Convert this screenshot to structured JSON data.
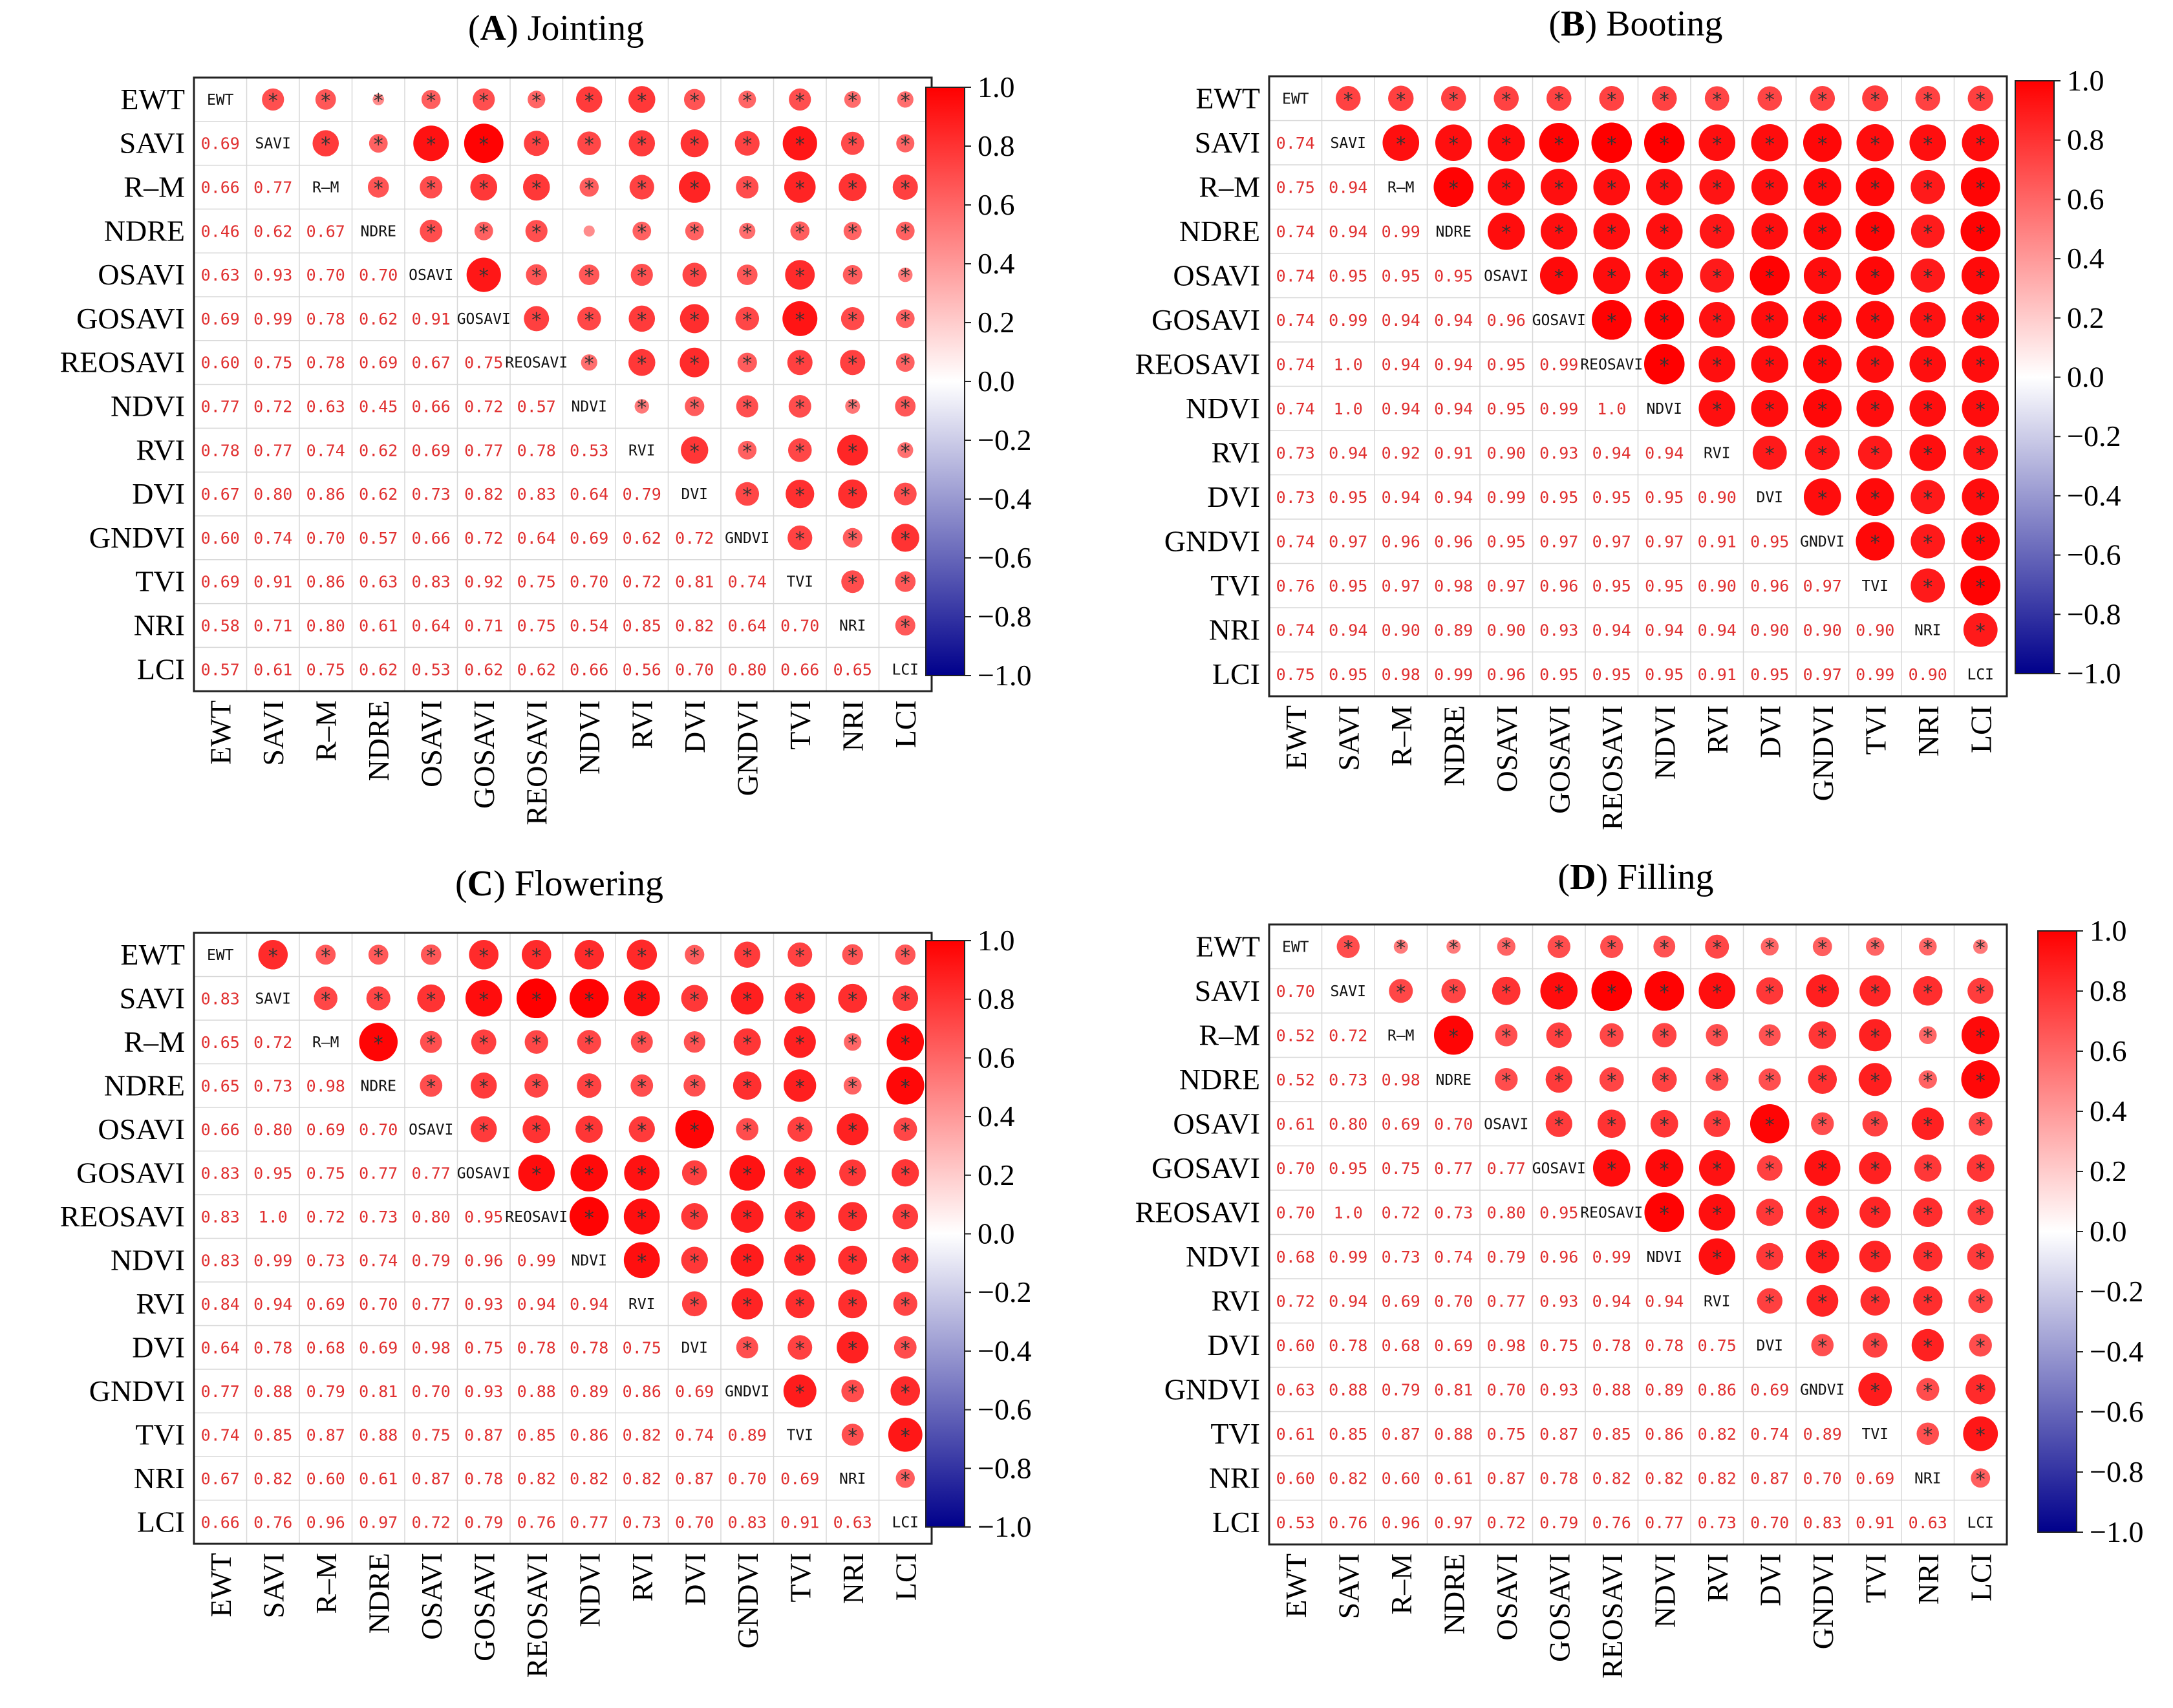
{
  "labels": [
    "EWT",
    "SAVI",
    "R–M",
    "NDRE",
    "OSAVI",
    "GOSAVI",
    "REOSAVI",
    "NDVI",
    "RVI",
    "DVI",
    "GNDVI",
    "TVI",
    "NRI",
    "LCI"
  ],
  "colorbar": {
    "ticks": [
      "1.0",
      "0.8",
      "0.6",
      "0.4",
      "0.2",
      "0.0",
      "−0.2",
      "−0.4",
      "−0.6",
      "−0.8",
      "−1.0"
    ],
    "colors": {
      "positive": "#ff0000",
      "zero": "#ffffff",
      "negative": "#00008b"
    }
  },
  "star_symbol": "*",
  "chart_data": [
    {
      "type": "heatmap",
      "letter": "A",
      "title": "Jointing",
      "values": [
        [
          0.69
        ],
        [
          0.66,
          0.77
        ],
        [
          0.46,
          0.62,
          0.67
        ],
        [
          0.63,
          0.93,
          0.7,
          0.7
        ],
        [
          0.69,
          0.99,
          0.78,
          0.62,
          0.91
        ],
        [
          0.6,
          0.75,
          0.78,
          0.69,
          0.67,
          0.75
        ],
        [
          0.77,
          0.72,
          0.63,
          0.45,
          0.66,
          0.72,
          0.57
        ],
        [
          0.78,
          0.77,
          0.74,
          0.62,
          0.69,
          0.77,
          0.78,
          0.53
        ],
        [
          0.67,
          0.8,
          0.86,
          0.62,
          0.73,
          0.82,
          0.83,
          0.64,
          0.79
        ],
        [
          0.6,
          0.74,
          0.7,
          0.57,
          0.66,
          0.72,
          0.64,
          0.69,
          0.62,
          0.72
        ],
        [
          0.69,
          0.91,
          0.86,
          0.63,
          0.83,
          0.92,
          0.75,
          0.7,
          0.72,
          0.81,
          0.74
        ],
        [
          0.58,
          0.71,
          0.8,
          0.61,
          0.64,
          0.71,
          0.75,
          0.54,
          0.85,
          0.82,
          0.64,
          0.7
        ],
        [
          0.57,
          0.61,
          0.75,
          0.62,
          0.53,
          0.62,
          0.62,
          0.66,
          0.56,
          0.7,
          0.8,
          0.66,
          0.65
        ]
      ],
      "value_labels": [
        [
          "0.69"
        ],
        [
          "0.66",
          "0.77"
        ],
        [
          "0.46",
          "0.62",
          "0.67"
        ],
        [
          "0.63",
          "0.93",
          "0.70",
          "0.70"
        ],
        [
          "0.69",
          "0.99",
          "0.78",
          "0.62",
          "0.91"
        ],
        [
          "0.60",
          "0.75",
          "0.78",
          "0.69",
          "0.67",
          "0.75"
        ],
        [
          "0.77",
          "0.72",
          "0.63",
          "0.45",
          "0.66",
          "0.72",
          "0.57"
        ],
        [
          "0.78",
          "0.77",
          "0.74",
          "0.62",
          "0.69",
          "0.77",
          "0.78",
          "0.53"
        ],
        [
          "0.67",
          "0.80",
          "0.86",
          "0.62",
          "0.73",
          "0.82",
          "0.83",
          "0.64",
          "0.79"
        ],
        [
          "0.60",
          "0.74",
          "0.70",
          "0.57",
          "0.66",
          "0.72",
          "0.64",
          "0.69",
          "0.62",
          "0.72"
        ],
        [
          "0.69",
          "0.91",
          "0.86",
          "0.63",
          "0.83",
          "0.92",
          "0.75",
          "0.70",
          "0.72",
          "0.81",
          "0.74"
        ],
        [
          "0.58",
          "0.71",
          "0.80",
          "0.61",
          "0.64",
          "0.71",
          "0.75",
          "0.54",
          "0.85",
          "0.82",
          "0.64",
          "0.70"
        ],
        [
          "0.57",
          "0.61",
          "0.75",
          "0.62",
          "0.53",
          "0.62",
          "0.62",
          "0.66",
          "0.56",
          "0.70",
          "0.80",
          "0.66",
          "0.65"
        ]
      ],
      "nonsignificant_cells": [
        [
          3,
          7
        ]
      ],
      "colorbar_range": [
        -1.0,
        1.0
      ]
    },
    {
      "type": "heatmap",
      "letter": "B",
      "title": "Booting",
      "values": [
        [
          0.74
        ],
        [
          0.75,
          0.94
        ],
        [
          0.74,
          0.94,
          0.99
        ],
        [
          0.74,
          0.95,
          0.95,
          0.95
        ],
        [
          0.74,
          0.99,
          0.94,
          0.94,
          0.96
        ],
        [
          0.74,
          1.0,
          0.94,
          0.94,
          0.95,
          0.99
        ],
        [
          0.74,
          1.0,
          0.94,
          0.94,
          0.95,
          0.99,
          1.0
        ],
        [
          0.73,
          0.94,
          0.92,
          0.91,
          0.9,
          0.93,
          0.94,
          0.94
        ],
        [
          0.73,
          0.95,
          0.94,
          0.94,
          0.99,
          0.95,
          0.95,
          0.95,
          0.9
        ],
        [
          0.74,
          0.97,
          0.96,
          0.96,
          0.95,
          0.97,
          0.97,
          0.97,
          0.91,
          0.95
        ],
        [
          0.76,
          0.95,
          0.97,
          0.98,
          0.97,
          0.96,
          0.95,
          0.95,
          0.9,
          0.96,
          0.97
        ],
        [
          0.74,
          0.94,
          0.9,
          0.89,
          0.9,
          0.93,
          0.94,
          0.94,
          0.94,
          0.9,
          0.9,
          0.9
        ],
        [
          0.75,
          0.95,
          0.98,
          0.99,
          0.96,
          0.95,
          0.95,
          0.95,
          0.91,
          0.95,
          0.97,
          0.99,
          0.9
        ]
      ],
      "value_labels": [
        [
          "0.74"
        ],
        [
          "0.75",
          "0.94"
        ],
        [
          "0.74",
          "0.94",
          "0.99"
        ],
        [
          "0.74",
          "0.95",
          "0.95",
          "0.95"
        ],
        [
          "0.74",
          "0.99",
          "0.94",
          "0.94",
          "0.96"
        ],
        [
          "0.74",
          "1.0",
          "0.94",
          "0.94",
          "0.95",
          "0.99"
        ],
        [
          "0.74",
          "1.0",
          "0.94",
          "0.94",
          "0.95",
          "0.99",
          "1.0"
        ],
        [
          "0.73",
          "0.94",
          "0.92",
          "0.91",
          "0.90",
          "0.93",
          "0.94",
          "0.94"
        ],
        [
          "0.73",
          "0.95",
          "0.94",
          "0.94",
          "0.99",
          "0.95",
          "0.95",
          "0.95",
          "0.90"
        ],
        [
          "0.74",
          "0.97",
          "0.96",
          "0.96",
          "0.95",
          "0.97",
          "0.97",
          "0.97",
          "0.91",
          "0.95"
        ],
        [
          "0.76",
          "0.95",
          "0.97",
          "0.98",
          "0.97",
          "0.96",
          "0.95",
          "0.95",
          "0.90",
          "0.96",
          "0.97"
        ],
        [
          "0.74",
          "0.94",
          "0.90",
          "0.89",
          "0.90",
          "0.93",
          "0.94",
          "0.94",
          "0.94",
          "0.90",
          "0.90",
          "0.90"
        ],
        [
          "0.75",
          "0.95",
          "0.98",
          "0.99",
          "0.96",
          "0.95",
          "0.95",
          "0.95",
          "0.91",
          "0.95",
          "0.97",
          "0.99",
          "0.90"
        ]
      ],
      "nonsignificant_cells": [],
      "colorbar_range": [
        -1.0,
        1.0
      ]
    },
    {
      "type": "heatmap",
      "letter": "C",
      "title": "Flowering",
      "values": [
        [
          0.83
        ],
        [
          0.65,
          0.72
        ],
        [
          0.65,
          0.73,
          0.98
        ],
        [
          0.66,
          0.8,
          0.69,
          0.7
        ],
        [
          0.83,
          0.95,
          0.75,
          0.77,
          0.77
        ],
        [
          0.83,
          1.0,
          0.72,
          0.73,
          0.8,
          0.95
        ],
        [
          0.83,
          0.99,
          0.73,
          0.74,
          0.79,
          0.96,
          0.99
        ],
        [
          0.84,
          0.94,
          0.69,
          0.7,
          0.77,
          0.93,
          0.94,
          0.94
        ],
        [
          0.64,
          0.78,
          0.68,
          0.69,
          0.98,
          0.75,
          0.78,
          0.78,
          0.75
        ],
        [
          0.77,
          0.88,
          0.79,
          0.81,
          0.7,
          0.93,
          0.88,
          0.89,
          0.86,
          0.69
        ],
        [
          0.74,
          0.85,
          0.87,
          0.88,
          0.75,
          0.87,
          0.85,
          0.86,
          0.82,
          0.74,
          0.89
        ],
        [
          0.67,
          0.82,
          0.6,
          0.61,
          0.87,
          0.78,
          0.82,
          0.82,
          0.82,
          0.87,
          0.7,
          0.69
        ],
        [
          0.66,
          0.76,
          0.96,
          0.97,
          0.72,
          0.79,
          0.76,
          0.77,
          0.73,
          0.7,
          0.83,
          0.91,
          0.63
        ]
      ],
      "value_labels": [
        [
          "0.83"
        ],
        [
          "0.65",
          "0.72"
        ],
        [
          "0.65",
          "0.73",
          "0.98"
        ],
        [
          "0.66",
          "0.80",
          "0.69",
          "0.70"
        ],
        [
          "0.83",
          "0.95",
          "0.75",
          "0.77",
          "0.77"
        ],
        [
          "0.83",
          "1.0",
          "0.72",
          "0.73",
          "0.80",
          "0.95"
        ],
        [
          "0.83",
          "0.99",
          "0.73",
          "0.74",
          "0.79",
          "0.96",
          "0.99"
        ],
        [
          "0.84",
          "0.94",
          "0.69",
          "0.70",
          "0.77",
          "0.93",
          "0.94",
          "0.94"
        ],
        [
          "0.64",
          "0.78",
          "0.68",
          "0.69",
          "0.98",
          "0.75",
          "0.78",
          "0.78",
          "0.75"
        ],
        [
          "0.77",
          "0.88",
          "0.79",
          "0.81",
          "0.70",
          "0.93",
          "0.88",
          "0.89",
          "0.86",
          "0.69"
        ],
        [
          "0.74",
          "0.85",
          "0.87",
          "0.88",
          "0.75",
          "0.87",
          "0.85",
          "0.86",
          "0.82",
          "0.74",
          "0.89"
        ],
        [
          "0.67",
          "0.82",
          "0.60",
          "0.61",
          "0.87",
          "0.78",
          "0.82",
          "0.82",
          "0.82",
          "0.87",
          "0.70",
          "0.69"
        ],
        [
          "0.66",
          "0.76",
          "0.96",
          "0.97",
          "0.72",
          "0.79",
          "0.76",
          "0.77",
          "0.73",
          "0.70",
          "0.83",
          "0.91",
          "0.63"
        ]
      ],
      "nonsignificant_cells": [],
      "colorbar_range": [
        -1.0,
        1.0
      ]
    },
    {
      "type": "heatmap",
      "letter": "D",
      "title": "Filling",
      "values": [
        [
          0.7
        ],
        [
          0.52,
          0.72
        ],
        [
          0.52,
          0.73,
          0.98
        ],
        [
          0.61,
          0.8,
          0.69,
          0.7
        ],
        [
          0.7,
          0.95,
          0.75,
          0.77,
          0.77
        ],
        [
          0.7,
          1.0,
          0.72,
          0.73,
          0.8,
          0.95
        ],
        [
          0.68,
          0.99,
          0.73,
          0.74,
          0.79,
          0.96,
          0.99
        ],
        [
          0.72,
          0.94,
          0.69,
          0.7,
          0.77,
          0.93,
          0.94,
          0.94
        ],
        [
          0.6,
          0.78,
          0.68,
          0.69,
          0.98,
          0.75,
          0.78,
          0.78,
          0.75
        ],
        [
          0.63,
          0.88,
          0.79,
          0.81,
          0.7,
          0.93,
          0.88,
          0.89,
          0.86,
          0.69
        ],
        [
          0.61,
          0.85,
          0.87,
          0.88,
          0.75,
          0.87,
          0.85,
          0.86,
          0.82,
          0.74,
          0.89
        ],
        [
          0.6,
          0.82,
          0.6,
          0.61,
          0.87,
          0.78,
          0.82,
          0.82,
          0.82,
          0.87,
          0.7,
          0.69
        ],
        [
          0.53,
          0.76,
          0.96,
          0.97,
          0.72,
          0.79,
          0.76,
          0.77,
          0.73,
          0.7,
          0.83,
          0.91,
          0.63
        ]
      ],
      "value_labels": [
        [
          "0.70"
        ],
        [
          "0.52",
          "0.72"
        ],
        [
          "0.52",
          "0.73",
          "0.98"
        ],
        [
          "0.61",
          "0.80",
          "0.69",
          "0.70"
        ],
        [
          "0.70",
          "0.95",
          "0.75",
          "0.77",
          "0.77"
        ],
        [
          "0.70",
          "1.0",
          "0.72",
          "0.73",
          "0.80",
          "0.95"
        ],
        [
          "0.68",
          "0.99",
          "0.73",
          "0.74",
          "0.79",
          "0.96",
          "0.99"
        ],
        [
          "0.72",
          "0.94",
          "0.69",
          "0.70",
          "0.77",
          "0.93",
          "0.94",
          "0.94"
        ],
        [
          "0.60",
          "0.78",
          "0.68",
          "0.69",
          "0.98",
          "0.75",
          "0.78",
          "0.78",
          "0.75"
        ],
        [
          "0.63",
          "0.88",
          "0.79",
          "0.81",
          "0.70",
          "0.93",
          "0.88",
          "0.89",
          "0.86",
          "0.69"
        ],
        [
          "0.61",
          "0.85",
          "0.87",
          "0.88",
          "0.75",
          "0.87",
          "0.85",
          "0.86",
          "0.82",
          "0.74",
          "0.89"
        ],
        [
          "0.60",
          "0.82",
          "0.60",
          "0.61",
          "0.87",
          "0.78",
          "0.82",
          "0.82",
          "0.82",
          "0.87",
          "0.70",
          "0.69"
        ],
        [
          "0.53",
          "0.76",
          "0.96",
          "0.97",
          "0.72",
          "0.79",
          "0.76",
          "0.77",
          "0.73",
          "0.70",
          "0.83",
          "0.91",
          "0.63"
        ]
      ],
      "nonsignificant_cells": [],
      "colorbar_range": [
        -1.0,
        1.0
      ]
    }
  ]
}
